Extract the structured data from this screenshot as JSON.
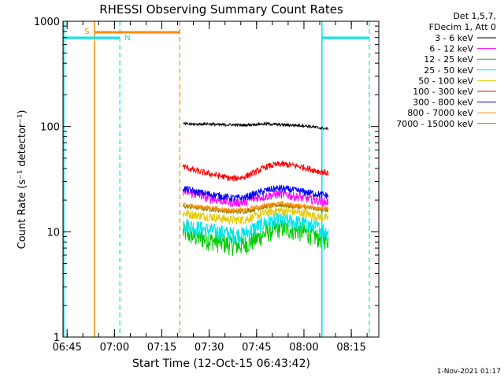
{
  "chart_data": {
    "type": "line",
    "title": "RHESSI Observing Summary Count Rates",
    "xlabel": "Start Time (12-Oct-15 06:43:42)",
    "ylabel": "Count Rate (s⁻¹ detector⁻¹)",
    "yscale": "log",
    "ylim": [
      1,
      1000
    ],
    "xlim_minutes": [
      0,
      100
    ],
    "x_ticks": [
      "06:45",
      "07:00",
      "07:15",
      "07:30",
      "07:45",
      "08:00",
      "08:15"
    ],
    "y_ticks": [
      "1",
      "10",
      "100",
      "1000"
    ],
    "grid": false,
    "legend_position": "top-right",
    "legend_header": [
      "Det 1,5,7,",
      "FDecim 1, Att 0"
    ],
    "footer_date": "1-Nov-2021 01:17",
    "data_start_minute": 38,
    "data_end_minute": 84,
    "series": [
      {
        "name": "3 - 6 keV",
        "color": "#000000",
        "values": [
          106,
          105,
          106,
          104,
          104,
          103,
          105,
          106,
          104,
          103,
          102,
          98,
          95
        ]
      },
      {
        "name": "6 - 12 keV",
        "color": "#ff00ff",
        "values": [
          24,
          23,
          21,
          20,
          19,
          19,
          21,
          22,
          23,
          22,
          21,
          20,
          19
        ]
      },
      {
        "name": "12 - 25 keV",
        "color": "#00cc00",
        "values": [
          10,
          9,
          8.5,
          8,
          7.5,
          7.5,
          8.5,
          10,
          11,
          10.5,
          10,
          9,
          8.5
        ]
      },
      {
        "name": "25 - 50 keV",
        "color": "#00e5ee",
        "values": [
          12,
          11,
          10.5,
          10,
          9.5,
          9.5,
          11,
          12.5,
          13,
          12.5,
          12,
          11,
          10
        ]
      },
      {
        "name": "50 - 100 keV",
        "color": "#e8c800",
        "values": [
          15,
          14.5,
          14,
          13.5,
          13,
          13,
          14,
          15.5,
          16,
          15.5,
          15,
          14,
          13.5
        ]
      },
      {
        "name": "100 - 300 keV",
        "color": "#ff0000",
        "values": [
          42,
          38,
          36,
          34,
          32,
          33,
          37,
          42,
          44,
          43,
          41,
          38,
          36
        ]
      },
      {
        "name": "300 - 800 keV",
        "color": "#0000ff",
        "values": [
          26,
          24,
          23,
          22,
          21,
          21,
          23,
          25,
          26,
          25,
          24,
          23,
          22
        ]
      },
      {
        "name": "800 - 7000 keV",
        "color": "#ff8c00",
        "values": [
          18,
          17.5,
          17,
          16.5,
          16,
          16,
          17,
          18,
          18.5,
          18,
          17.5,
          17,
          16.5
        ]
      },
      {
        "name": "7000 - 15000 keV",
        "color": "#808000",
        "values": [
          17.5,
          17,
          16.5,
          16,
          15.5,
          15.5,
          16.5,
          17.5,
          18,
          17.5,
          17,
          16.5,
          16
        ]
      }
    ],
    "saa_line_color": "#00e5ee",
    "night_line_color": "#00e5ee",
    "attenuator_color": "#ff8c00",
    "solid_vertical_markers_min": [
      0,
      10,
      82
    ],
    "dashed_vertical_markers_min": [
      18,
      37,
      97
    ],
    "annotations": {
      "s_label": "S",
      "n_label": "N"
    }
  }
}
